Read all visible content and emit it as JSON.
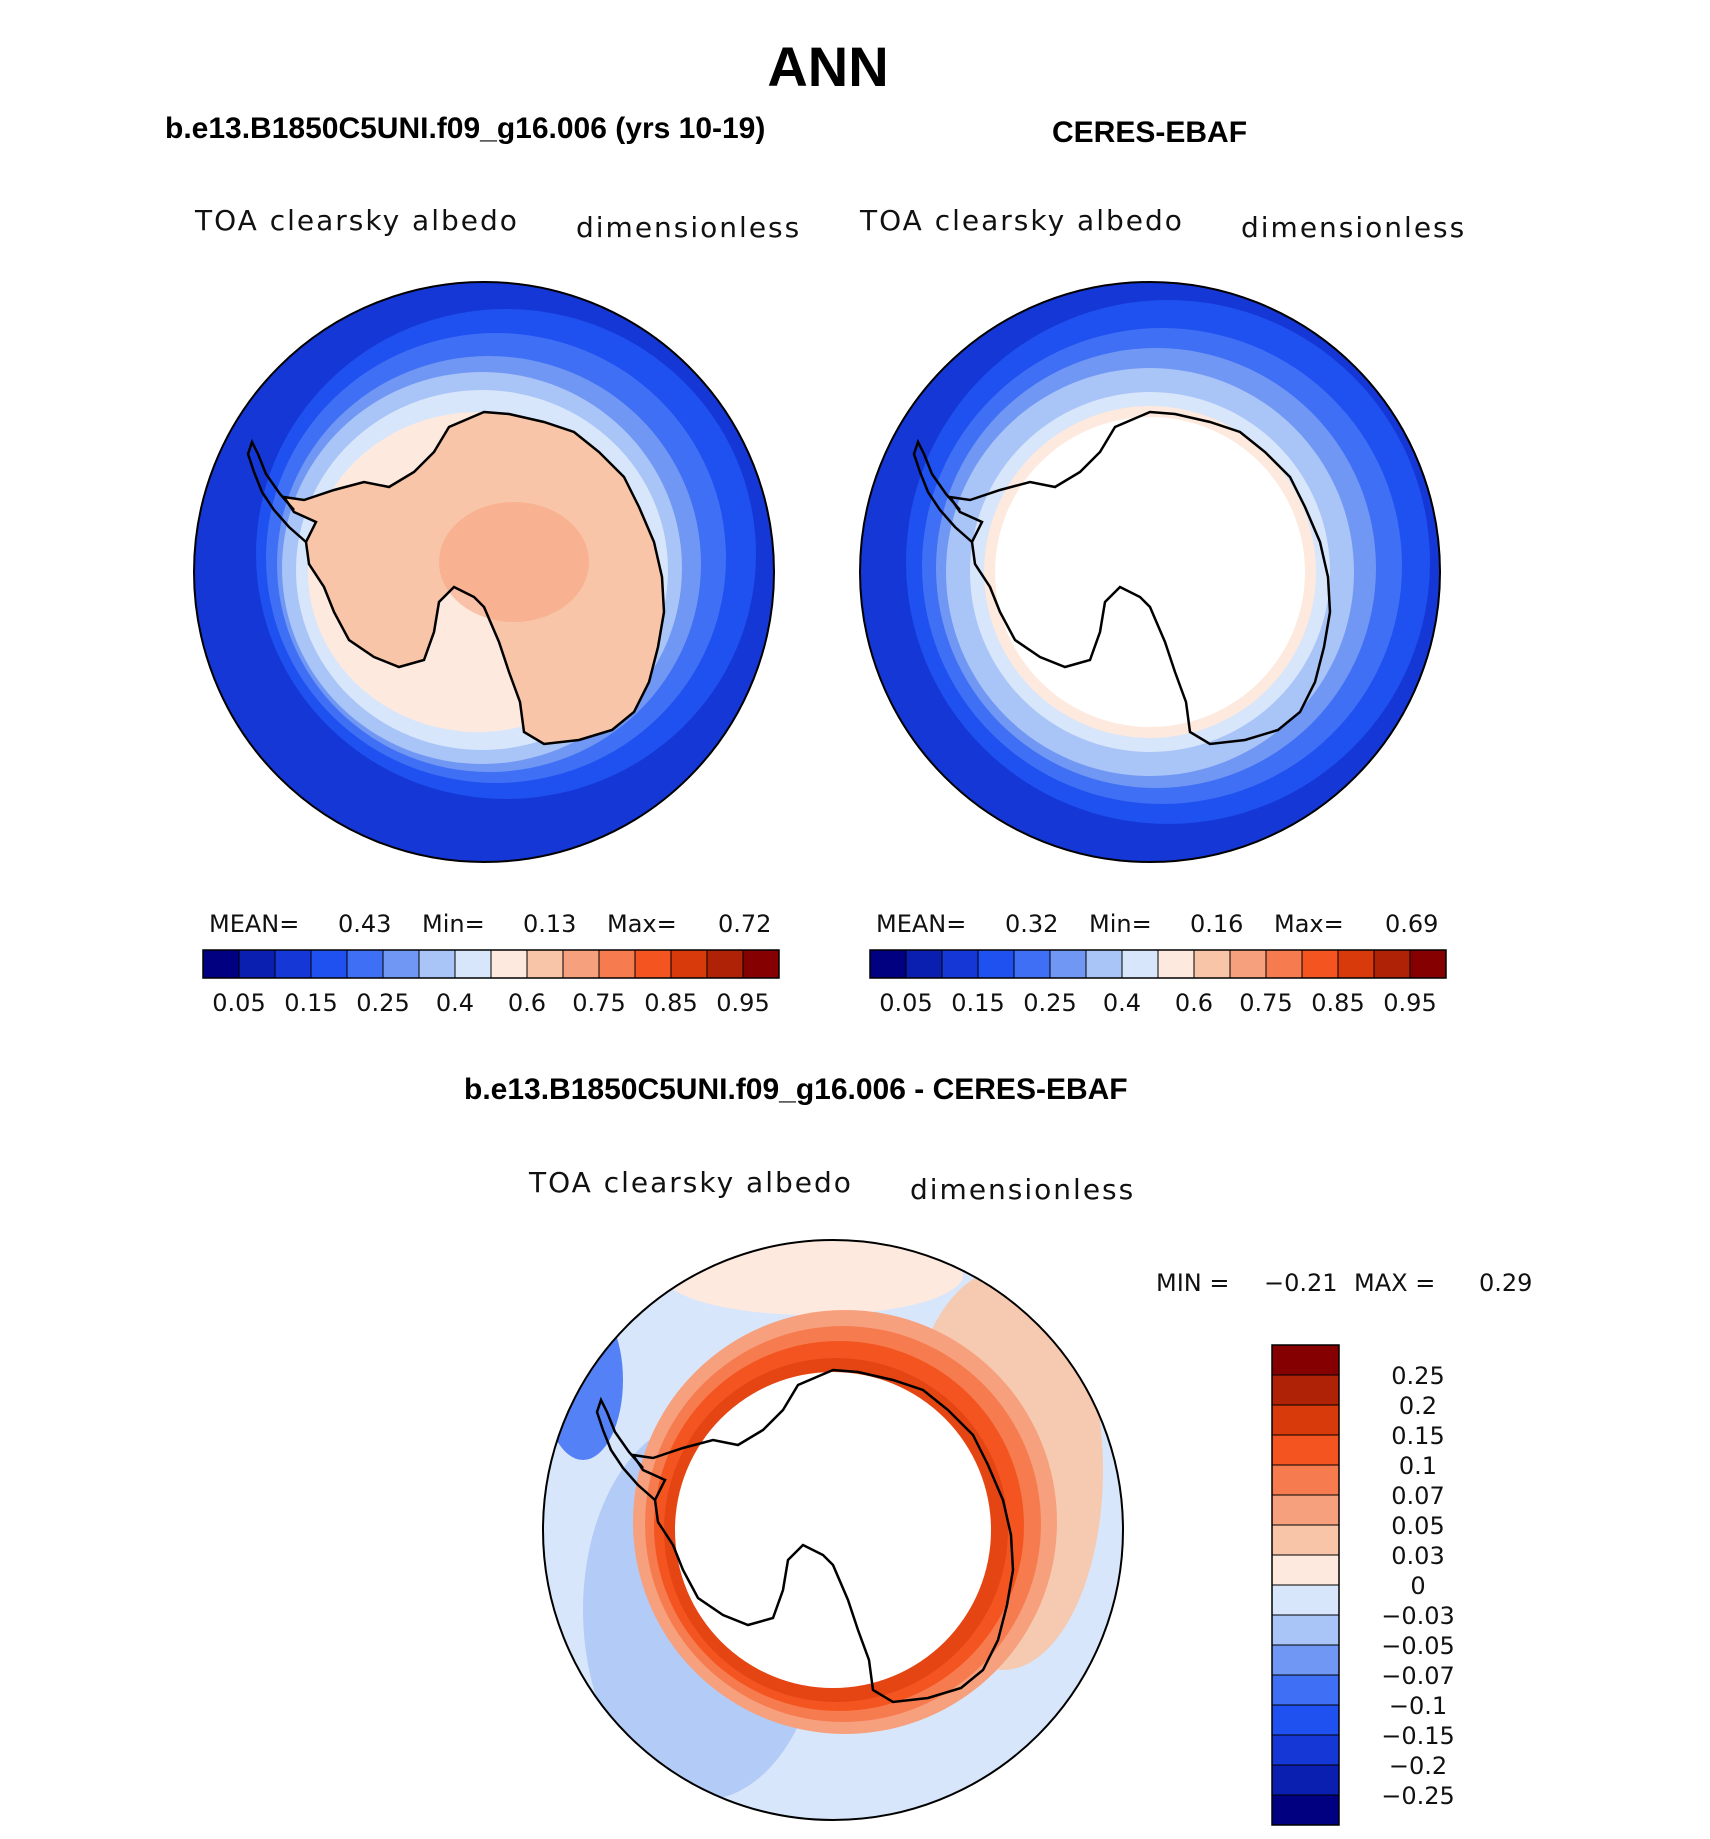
{
  "title": "ANN",
  "panels": [
    {
      "heading": "b.e13.B1850C5UNI.f09_g16.006 (yrs 10-19)",
      "variable": "TOA clearsky albedo",
      "units": "dimensionless",
      "stats": {
        "mean_label": "MEAN=",
        "mean": "0.43",
        "min_label": "Min=",
        "min": "0.13",
        "max_label": "Max=",
        "max": "0.72"
      },
      "field": "model"
    },
    {
      "heading": "CERES-EBAF",
      "variable": "TOA clearsky albedo",
      "units": "dimensionless",
      "stats": {
        "mean_label": "MEAN=",
        "mean": "0.32",
        "min_label": "Min=",
        "min": "0.16",
        "max_label": "Max=",
        "max": "0.69"
      },
      "field": "obs"
    }
  ],
  "main_colorbar": {
    "colors": [
      "#000080",
      "#0a1eb0",
      "#1437d6",
      "#1f50f0",
      "#3e6ff4",
      "#7097f4",
      "#a9c4f6",
      "#d7e6fb",
      "#fde9dd",
      "#f9c5a8",
      "#f7a07d",
      "#f67c50",
      "#f45520",
      "#d83a0c",
      "#b02206",
      "#850000"
    ],
    "tick_labels": [
      "0.05",
      "0.15",
      "0.25",
      "0.4",
      "0.6",
      "0.75",
      "0.85",
      "0.95"
    ]
  },
  "difference": {
    "heading": "b.e13.B1850C5UNI.f09_g16.006 - CERES-EBAF",
    "variable": "TOA clearsky albedo",
    "units": "dimensionless",
    "min_label": "MIN =",
    "min": "−0.21",
    "max_label": "MAX =",
    "max": "0.29",
    "colors_top_to_bottom": [
      "#850000",
      "#b02206",
      "#d83a0c",
      "#f45520",
      "#f67c50",
      "#f7a07d",
      "#f9c5a8",
      "#fde9dd",
      "#d7e6fb",
      "#a9c4f6",
      "#7097f4",
      "#3e6ff4",
      "#1f50f0",
      "#1437d6",
      "#0a1eb0",
      "#000080"
    ],
    "tick_labels": [
      "0.25",
      "0.2",
      "0.15",
      "0.1",
      "0.07",
      "0.05",
      "0.03",
      "0",
      "−0.03",
      "−0.05",
      "−0.07",
      "−0.1",
      "−0.15",
      "−0.2",
      "−0.25"
    ]
  }
}
